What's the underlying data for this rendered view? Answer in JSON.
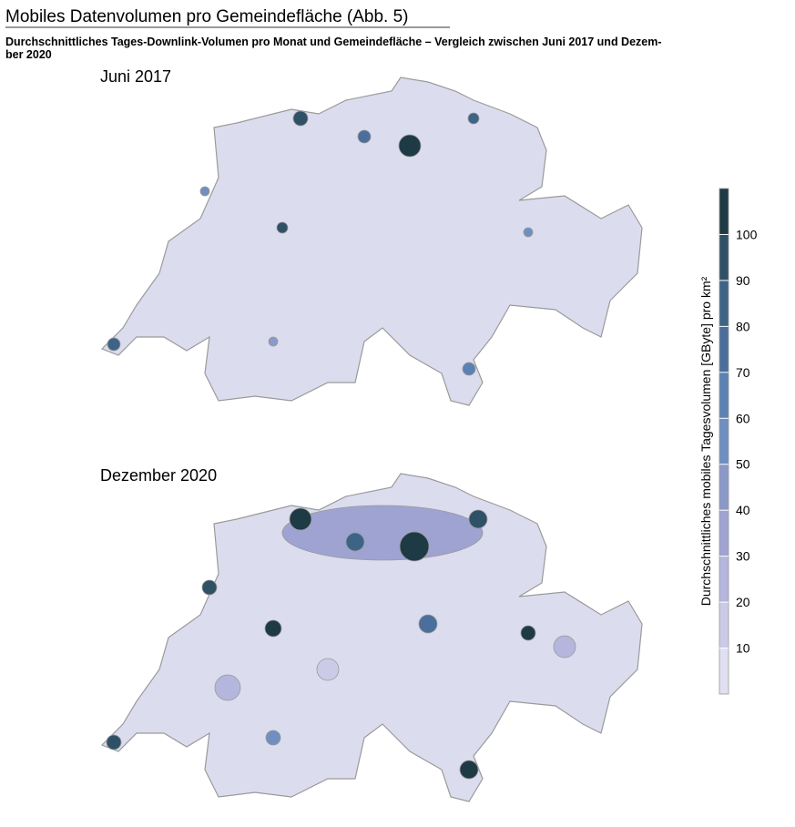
{
  "header": {
    "title": "Mobiles Datenvolumen pro Gemeindefläche  (Abb. 5)",
    "subtitle_lines": [
      "Durchschnittliches Tages-Downlink-Volumen pro Monat und Gemeindefläche – Vergleich zwischen Juni 2017 und Dezem-",
      "ber 2020"
    ]
  },
  "maps": [
    {
      "label": "Juni 2017"
    },
    {
      "label": "Dezember 2020"
    }
  ],
  "legend": {
    "title": "Durchschnittliches mobiles Tagesvolumen [GByte] pro km²",
    "lim": [
      0,
      110
    ],
    "ticks": [
      10,
      20,
      30,
      40,
      50,
      60,
      70,
      80,
      90,
      100
    ],
    "colors": [
      "#e0e0f2",
      "#cbcbe8",
      "#b4b6dd",
      "#9ea3d2",
      "#8b99c8",
      "#6e8fc0",
      "#5a82b3",
      "#4a6f9c",
      "#3d6486",
      "#2f5166",
      "#1e3a45"
    ]
  }
}
